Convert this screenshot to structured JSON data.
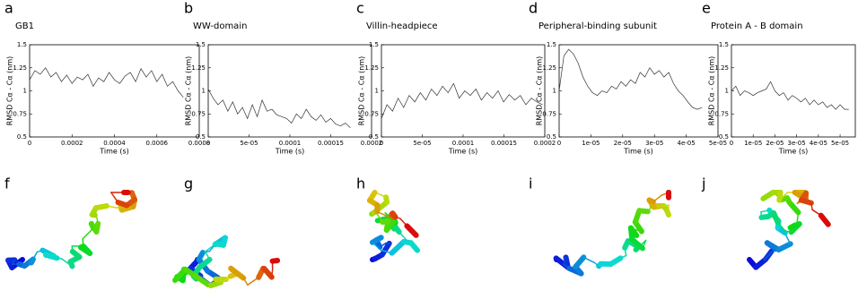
{
  "chart_data": [
    {
      "type": "line",
      "label": "a",
      "title": "GB1",
      "ylabel": "RMSD Cα - Cα (nm)",
      "xlabel": "Time (s)",
      "color": "#333",
      "x": [
        0,
        2.5e-05,
        5e-05,
        7.5e-05,
        0.0001,
        0.000125,
        0.00015,
        0.000175,
        0.0002,
        0.000225,
        0.00025,
        0.000275,
        0.0003,
        0.000325,
        0.00035,
        0.000375,
        0.0004,
        0.000425,
        0.00045,
        0.000475,
        0.0005,
        0.000525,
        0.00055,
        0.000575,
        0.0006,
        0.000625,
        0.00065,
        0.000675,
        0.0007,
        0.000725
      ],
      "values": [
        1.12,
        1.22,
        1.18,
        1.25,
        1.15,
        1.2,
        1.1,
        1.17,
        1.08,
        1.15,
        1.12,
        1.18,
        1.05,
        1.14,
        1.1,
        1.2,
        1.12,
        1.08,
        1.16,
        1.2,
        1.1,
        1.24,
        1.15,
        1.22,
        1.1,
        1.18,
        1.05,
        1.1,
        1.0,
        0.93
      ],
      "xlim": [
        0,
        0.0008
      ],
      "xticks": [
        0,
        0.0002,
        0.0004,
        0.0006,
        0.0008
      ],
      "ylim": [
        0.5,
        1.5
      ],
      "yticks": [
        0.5,
        0.75,
        1,
        1.25,
        1.5
      ]
    },
    {
      "type": "line",
      "label": "b",
      "title": "WW-domain",
      "ylabel": "RMSD Cα - Cα (nm)",
      "xlabel": "Time (s)",
      "color": "#333",
      "x": [
        0,
        6e-06,
        1.2e-05,
        1.8e-05,
        2.4e-05,
        3e-05,
        3.6e-05,
        4.2e-05,
        4.8e-05,
        5.4e-05,
        6e-05,
        6.6e-05,
        7.2e-05,
        7.8e-05,
        8.4e-05,
        9e-05,
        9.6e-05,
        0.000102,
        0.000108,
        0.000114,
        0.00012,
        0.000126,
        0.000132,
        0.000138,
        0.000144,
        0.00015,
        0.000156,
        0.000162,
        0.000168,
        0.000174
      ],
      "values": [
        1.02,
        0.92,
        0.85,
        0.9,
        0.78,
        0.88,
        0.75,
        0.82,
        0.7,
        0.85,
        0.72,
        0.9,
        0.78,
        0.8,
        0.74,
        0.72,
        0.7,
        0.65,
        0.75,
        0.7,
        0.8,
        0.72,
        0.68,
        0.74,
        0.66,
        0.7,
        0.64,
        0.62,
        0.65,
        0.6
      ],
      "xlim": [
        0,
        0.0002
      ],
      "xticks": [
        0,
        {
          "value": 5e-05,
          "label": "5e-05"
        },
        0.0001,
        0.00015,
        0.0002
      ],
      "ylim": [
        0.5,
        1.5
      ],
      "yticks": [
        0.5,
        0.75,
        1,
        1.25,
        1.5
      ]
    },
    {
      "type": "line",
      "label": "c",
      "title": "Villin-headpiece",
      "ylabel": "RMSD Cα - Cα (nm)",
      "xlabel": "Time (s)",
      "color": "#333",
      "x": [
        0,
        6.8e-06,
        1.36e-05,
        2.04e-05,
        2.72e-05,
        3.4e-05,
        4.08e-05,
        4.76e-05,
        5.44e-05,
        6.12e-05,
        6.8e-05,
        7.48e-05,
        8.16e-05,
        8.84e-05,
        9.52e-05,
        0.000102,
        0.0001088,
        0.0001156,
        0.0001224,
        0.0001292,
        0.000136,
        0.0001428,
        0.0001496,
        0.0001564,
        0.0001632,
        0.00017,
        0.0001768,
        0.0001836,
        0.0001904,
        0.0001972
      ],
      "values": [
        0.7,
        0.85,
        0.78,
        0.92,
        0.82,
        0.95,
        0.88,
        0.98,
        0.9,
        1.02,
        0.95,
        1.05,
        0.98,
        1.08,
        0.92,
        1.0,
        0.95,
        1.02,
        0.9,
        0.98,
        0.92,
        1.0,
        0.88,
        0.96,
        0.9,
        0.95,
        0.85,
        0.92,
        0.88,
        0.85
      ],
      "xlim": [
        0,
        0.0002
      ],
      "xticks": [
        0,
        {
          "value": 5e-05,
          "label": "5e-05"
        },
        0.0001,
        0.00015,
        0.0002
      ],
      "ylim": [
        0.5,
        1.5
      ],
      "yticks": [
        0.5,
        0.75,
        1,
        1.25,
        1.5
      ]
    },
    {
      "type": "line",
      "label": "d",
      "title": "Peripheral-binding subunit",
      "ylabel": "RMSD Cα - Cα (nm)",
      "xlabel": "Time (s)",
      "color": "#333",
      "x": [
        0,
        1.5e-06,
        3e-06,
        4.5e-06,
        6e-06,
        7.5e-06,
        9e-06,
        1.05e-05,
        1.2e-05,
        1.35e-05,
        1.5e-05,
        1.65e-05,
        1.8e-05,
        1.95e-05,
        2.1e-05,
        2.25e-05,
        2.4e-05,
        2.55e-05,
        2.7e-05,
        2.85e-05,
        3e-05,
        3.15e-05,
        3.3e-05,
        3.45e-05,
        3.6e-05,
        3.75e-05,
        3.9e-05,
        4.05e-05,
        4.2e-05,
        4.35e-05,
        4.5e-05
      ],
      "values": [
        1.0,
        1.38,
        1.45,
        1.4,
        1.3,
        1.15,
        1.05,
        0.98,
        0.95,
        1.0,
        0.98,
        1.05,
        1.02,
        1.1,
        1.05,
        1.12,
        1.08,
        1.2,
        1.15,
        1.25,
        1.18,
        1.22,
        1.15,
        1.2,
        1.08,
        1.0,
        0.95,
        0.88,
        0.82,
        0.8,
        0.82
      ],
      "xlim": [
        0,
        5e-05
      ],
      "xticks": [
        0,
        {
          "value": 1e-05,
          "label": "1e-05"
        },
        {
          "value": 2e-05,
          "label": "2e-05"
        },
        {
          "value": 3e-05,
          "label": "3e-05"
        },
        {
          "value": 4e-05,
          "label": "4e-05"
        },
        {
          "value": 5e-05,
          "label": "5e-05"
        }
      ],
      "ylim": [
        0.5,
        1.5
      ],
      "yticks": [
        0.5,
        0.75,
        1,
        1.25,
        1.5
      ]
    },
    {
      "type": "line",
      "label": "e",
      "title": "Protein A - B domain",
      "ylabel": "RMSD Cα - Cα (nm)",
      "xlabel": "Time (s)",
      "color": "#333",
      "x": [
        0,
        2e-06,
        4e-06,
        6e-06,
        8e-06,
        1e-05,
        1.2e-05,
        1.4e-05,
        1.6e-05,
        1.8e-05,
        2e-05,
        2.2e-05,
        2.4e-05,
        2.6e-05,
        2.8e-05,
        3e-05,
        3.2e-05,
        3.4e-05,
        3.6e-05,
        3.8e-05,
        4e-05,
        4.2e-05,
        4.4e-05,
        4.6e-05,
        4.8e-05,
        5e-05,
        5.2e-05,
        5.4e-05
      ],
      "values": [
        1.0,
        1.05,
        0.95,
        1.0,
        0.98,
        0.95,
        0.98,
        1.0,
        1.02,
        1.1,
        1.0,
        0.95,
        0.98,
        0.9,
        0.95,
        0.92,
        0.88,
        0.92,
        0.85,
        0.9,
        0.85,
        0.88,
        0.82,
        0.85,
        0.8,
        0.85,
        0.8,
        0.8
      ],
      "xlim": [
        0,
        5.7e-05
      ],
      "xticks": [
        0,
        {
          "value": 1e-05,
          "label": "1e-05"
        },
        {
          "value": 2e-05,
          "label": "2e-05"
        },
        {
          "value": 3e-05,
          "label": "3e-05"
        },
        {
          "value": 4e-05,
          "label": "4e-05"
        },
        {
          "value": 5e-05,
          "label": "5e-05"
        }
      ],
      "ylim": [
        0.5,
        1.5
      ],
      "yticks": [
        0.5,
        0.75,
        1,
        1.25,
        1.5
      ]
    }
  ],
  "structure_panels": [
    "f",
    "g",
    "h",
    "i",
    "j"
  ]
}
